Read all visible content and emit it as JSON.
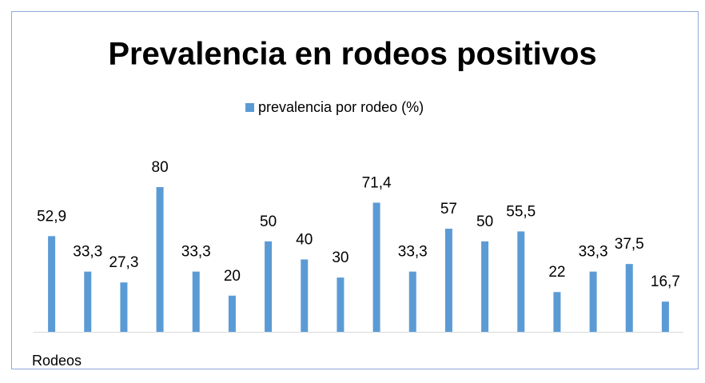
{
  "chart_data": {
    "type": "bar",
    "title": "Prevalencia en rodeos positivos",
    "x_label": "Rodeos",
    "categories": [
      null,
      null,
      null,
      null,
      null,
      null,
      null,
      null,
      null,
      null,
      null,
      null,
      null,
      null,
      null,
      null,
      null,
      null
    ],
    "series": [
      {
        "name": "prevalencia por rodeo (%)",
        "color": "#5b9bd5",
        "values": [
          52.9,
          33.3,
          27.3,
          80,
          33.3,
          20,
          50,
          40,
          30,
          71.4,
          33.3,
          57,
          50,
          55.5,
          22,
          33.3,
          37.5,
          16.7
        ],
        "value_labels": [
          "52,9",
          "33,3",
          "27,3",
          "80",
          "33,3",
          "20",
          "50",
          "40",
          "30",
          "71,4",
          "33,3",
          "57",
          "50",
          "55,5",
          "22",
          "33,3",
          "37,5",
          "16,7"
        ]
      }
    ],
    "legend": "top"
  }
}
